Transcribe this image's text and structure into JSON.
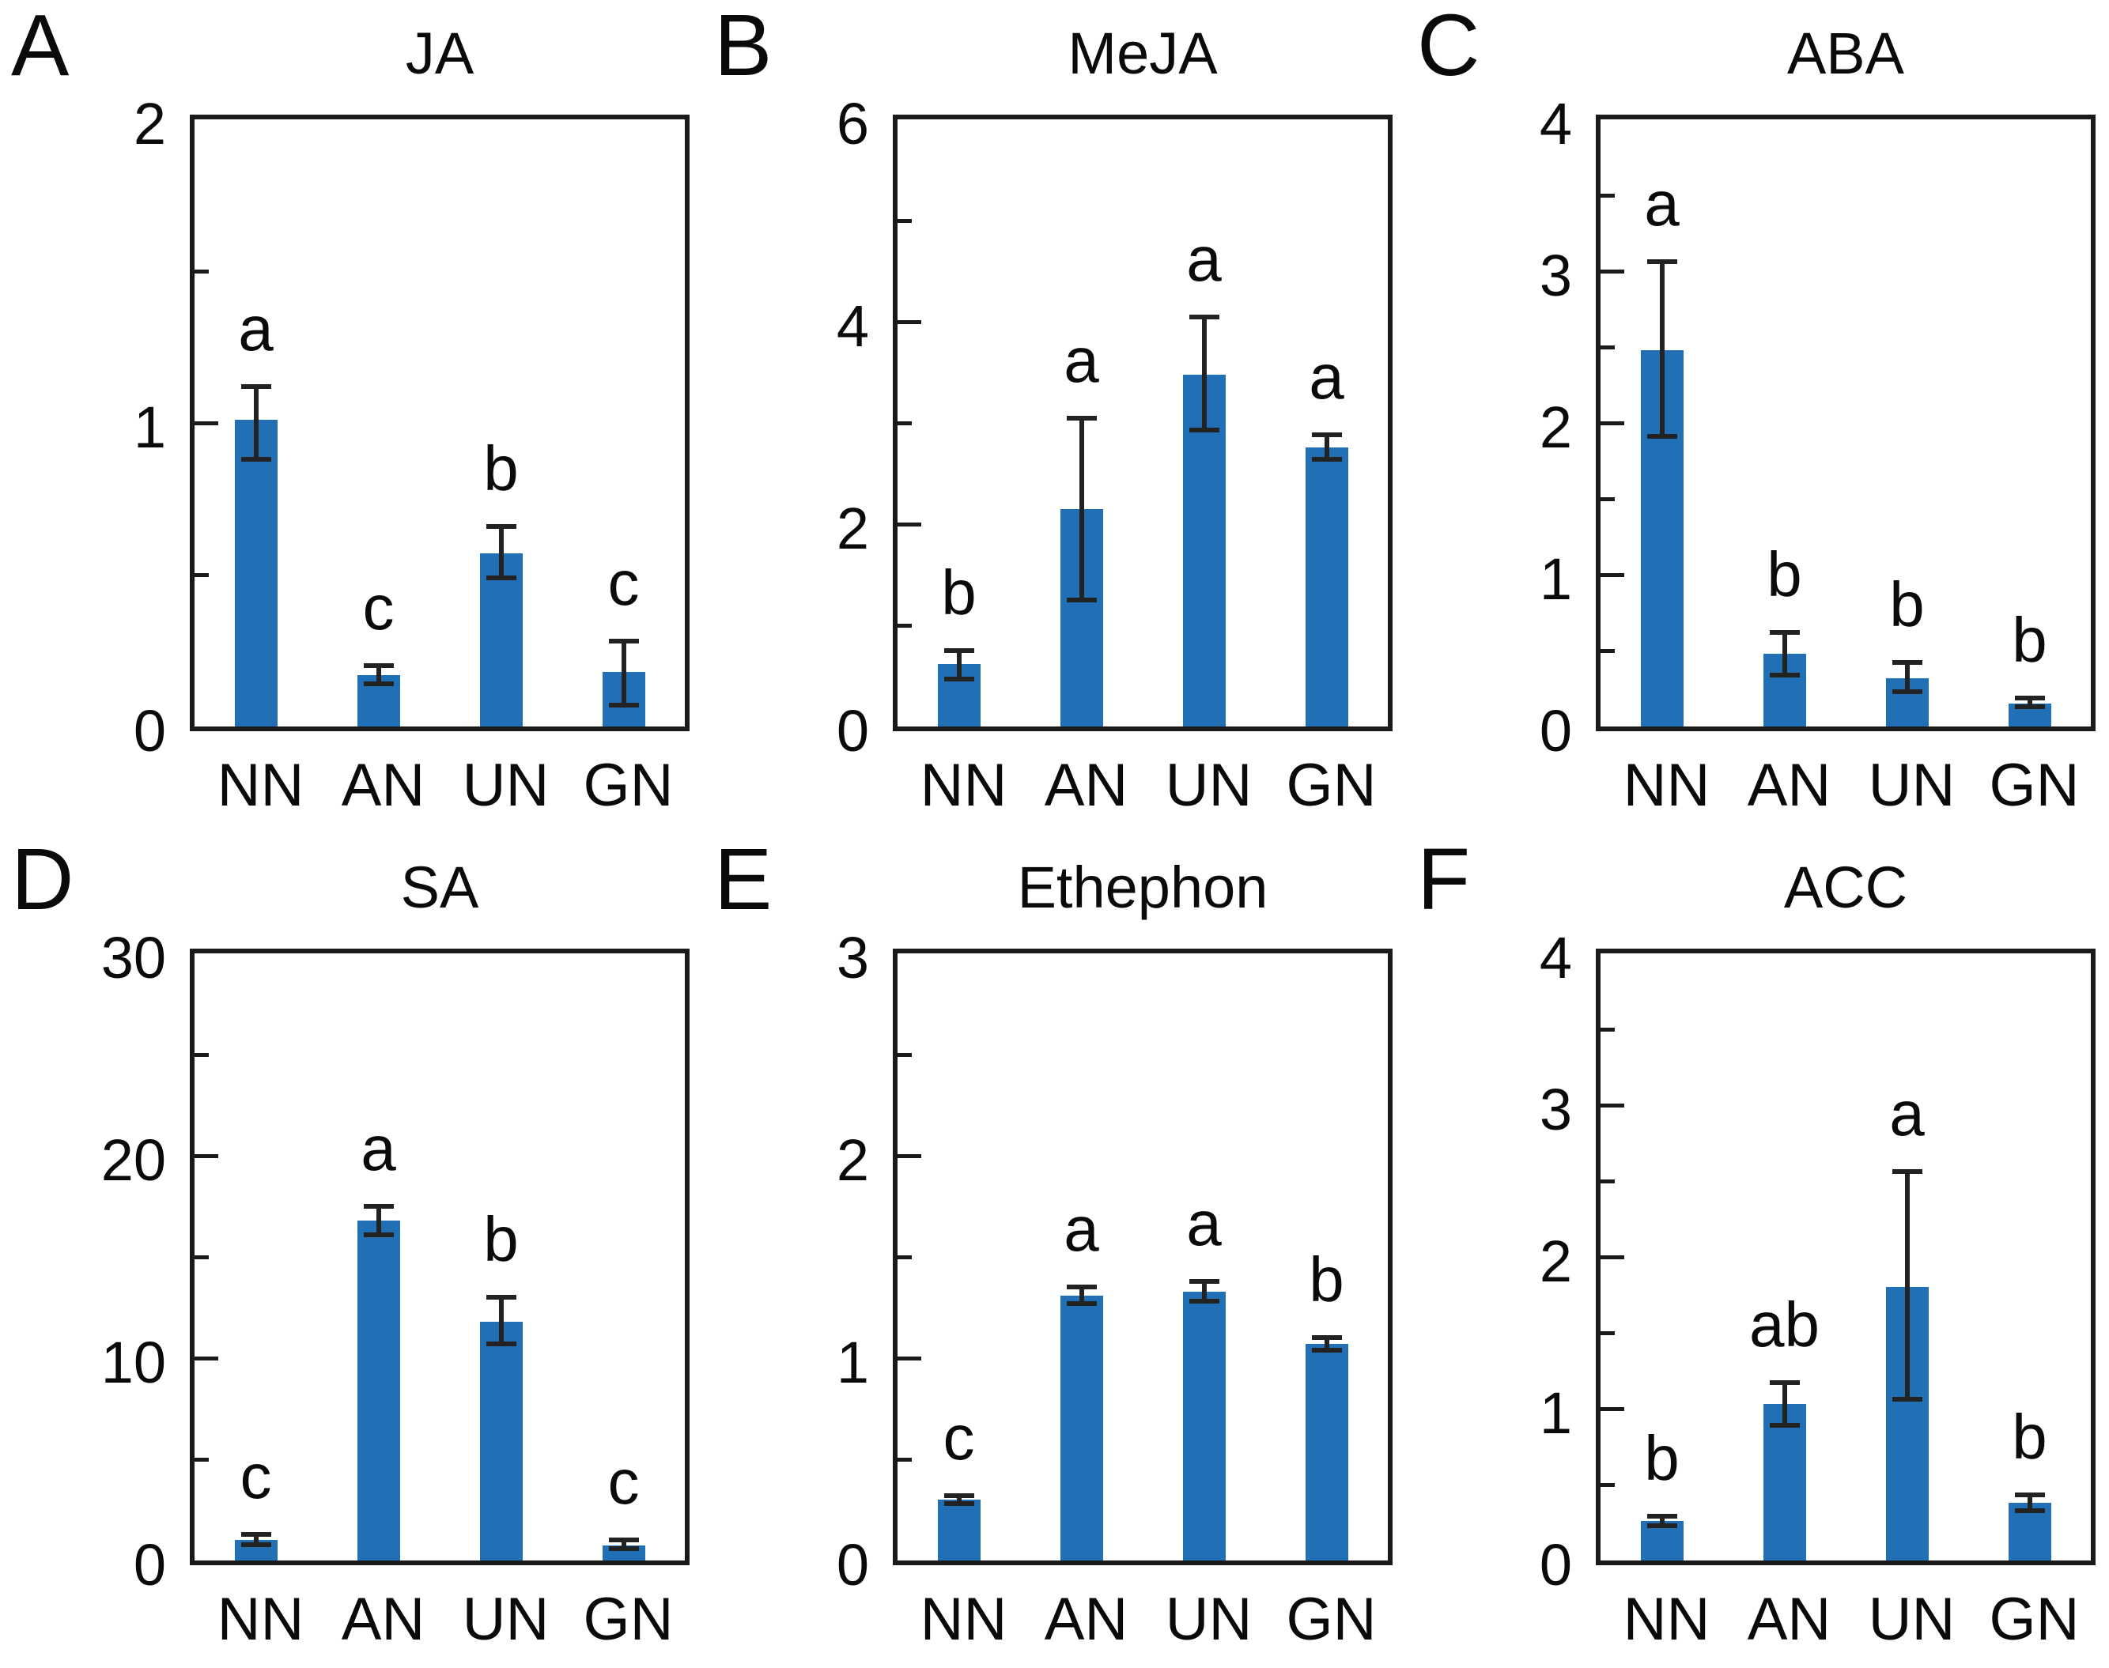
{
  "figure": {
    "bar_color": "#2170b6",
    "axis_color": "#1a1a1a",
    "error_bar_color": "#222222",
    "categories": [
      "NN",
      "AN",
      "UN",
      "GN"
    ]
  },
  "chart_data": [
    {
      "type": "bar",
      "panel_letter": "A",
      "title": "JA",
      "categories": [
        "NN",
        "AN",
        "UN",
        "GN"
      ],
      "values": [
        1.01,
        0.17,
        0.57,
        0.18
      ],
      "err_plus": [
        0.11,
        0.03,
        0.09,
        0.1
      ],
      "err_minus": [
        0.13,
        0.03,
        0.08,
        0.11
      ],
      "sig_letters": [
        "a",
        "c",
        "b",
        "c"
      ],
      "ylim": [
        0,
        2
      ],
      "yticks_major": [
        {
          "v": 0,
          "label": "0"
        },
        {
          "v": 1,
          "label": "1"
        },
        {
          "v": 2,
          "label": "2"
        }
      ],
      "yticks_minor": [
        0.5,
        1.5
      ]
    },
    {
      "type": "bar",
      "panel_letter": "B",
      "title": "MeJA",
      "categories": [
        "NN",
        "AN",
        "UN",
        "GN"
      ],
      "values": [
        0.62,
        2.15,
        3.48,
        2.76
      ],
      "err_plus": [
        0.13,
        0.9,
        0.57,
        0.12
      ],
      "err_minus": [
        0.15,
        0.9,
        0.55,
        0.12
      ],
      "sig_letters": [
        "b",
        "a",
        "a",
        "a"
      ],
      "ylim": [
        0,
        6
      ],
      "yticks_major": [
        {
          "v": 0,
          "label": "0"
        },
        {
          "v": 2,
          "label": "2"
        },
        {
          "v": 4,
          "label": "4"
        },
        {
          "v": 6,
          "label": "6"
        }
      ],
      "yticks_minor": [
        1,
        3,
        5
      ]
    },
    {
      "type": "bar",
      "panel_letter": "C",
      "title": "ABA",
      "categories": [
        "NN",
        "AN",
        "UN",
        "GN"
      ],
      "values": [
        2.48,
        0.48,
        0.32,
        0.15
      ],
      "err_plus": [
        0.58,
        0.14,
        0.1,
        0.04
      ],
      "err_minus": [
        0.57,
        0.14,
        0.09,
        0.02
      ],
      "sig_letters": [
        "a",
        "b",
        "b",
        "b"
      ],
      "ylim": [
        0,
        4
      ],
      "yticks_major": [
        {
          "v": 0,
          "label": "0"
        },
        {
          "v": 1,
          "label": "1"
        },
        {
          "v": 2,
          "label": "2"
        },
        {
          "v": 3,
          "label": "3"
        },
        {
          "v": 4,
          "label": "4"
        }
      ],
      "yticks_minor": [
        0.5,
        1.5,
        2.5,
        3.5
      ]
    },
    {
      "type": "bar",
      "panel_letter": "D",
      "title": "SA",
      "categories": [
        "NN",
        "AN",
        "UN",
        "GN"
      ],
      "values": [
        1.0,
        16.8,
        11.8,
        0.75
      ],
      "err_plus": [
        0.3,
        0.7,
        1.2,
        0.25
      ],
      "err_minus": [
        0.2,
        0.7,
        1.1,
        0.15
      ],
      "sig_letters": [
        "c",
        "a",
        "b",
        "c"
      ],
      "ylim": [
        0,
        30
      ],
      "yticks_major": [
        {
          "v": 0,
          "label": "0"
        },
        {
          "v": 10,
          "label": "10"
        },
        {
          "v": 20,
          "label": "20"
        },
        {
          "v": 30,
          "label": "30"
        }
      ],
      "yticks_minor": [
        5,
        15,
        25
      ]
    },
    {
      "type": "bar",
      "panel_letter": "E",
      "title": "Ethephon",
      "categories": [
        "NN",
        "AN",
        "UN",
        "GN"
      ],
      "values": [
        0.3,
        1.31,
        1.33,
        1.07
      ],
      "err_plus": [
        0.02,
        0.04,
        0.05,
        0.03
      ],
      "err_minus": [
        0.02,
        0.04,
        0.05,
        0.03
      ],
      "sig_letters": [
        "c",
        "a",
        "a",
        "b"
      ],
      "ylim": [
        0,
        3
      ],
      "yticks_major": [
        {
          "v": 0,
          "label": "0"
        },
        {
          "v": 1,
          "label": "1"
        },
        {
          "v": 2,
          "label": "2"
        },
        {
          "v": 3,
          "label": "3"
        }
      ],
      "yticks_minor": [
        0.5,
        1.5,
        2.5
      ]
    },
    {
      "type": "bar",
      "panel_letter": "F",
      "title": "ACC",
      "categories": [
        "NN",
        "AN",
        "UN",
        "GN"
      ],
      "values": [
        0.26,
        1.03,
        1.8,
        0.38
      ],
      "err_plus": [
        0.03,
        0.14,
        0.76,
        0.05
      ],
      "err_minus": [
        0.03,
        0.14,
        0.74,
        0.05
      ],
      "sig_letters": [
        "b",
        "ab",
        "a",
        "b"
      ],
      "ylim": [
        0,
        4
      ],
      "yticks_major": [
        {
          "v": 0,
          "label": "0"
        },
        {
          "v": 1,
          "label": "1"
        },
        {
          "v": 2,
          "label": "2"
        },
        {
          "v": 3,
          "label": "3"
        },
        {
          "v": 4,
          "label": "4"
        }
      ],
      "yticks_minor": [
        0.5,
        1.5,
        2.5,
        3.5
      ]
    }
  ]
}
